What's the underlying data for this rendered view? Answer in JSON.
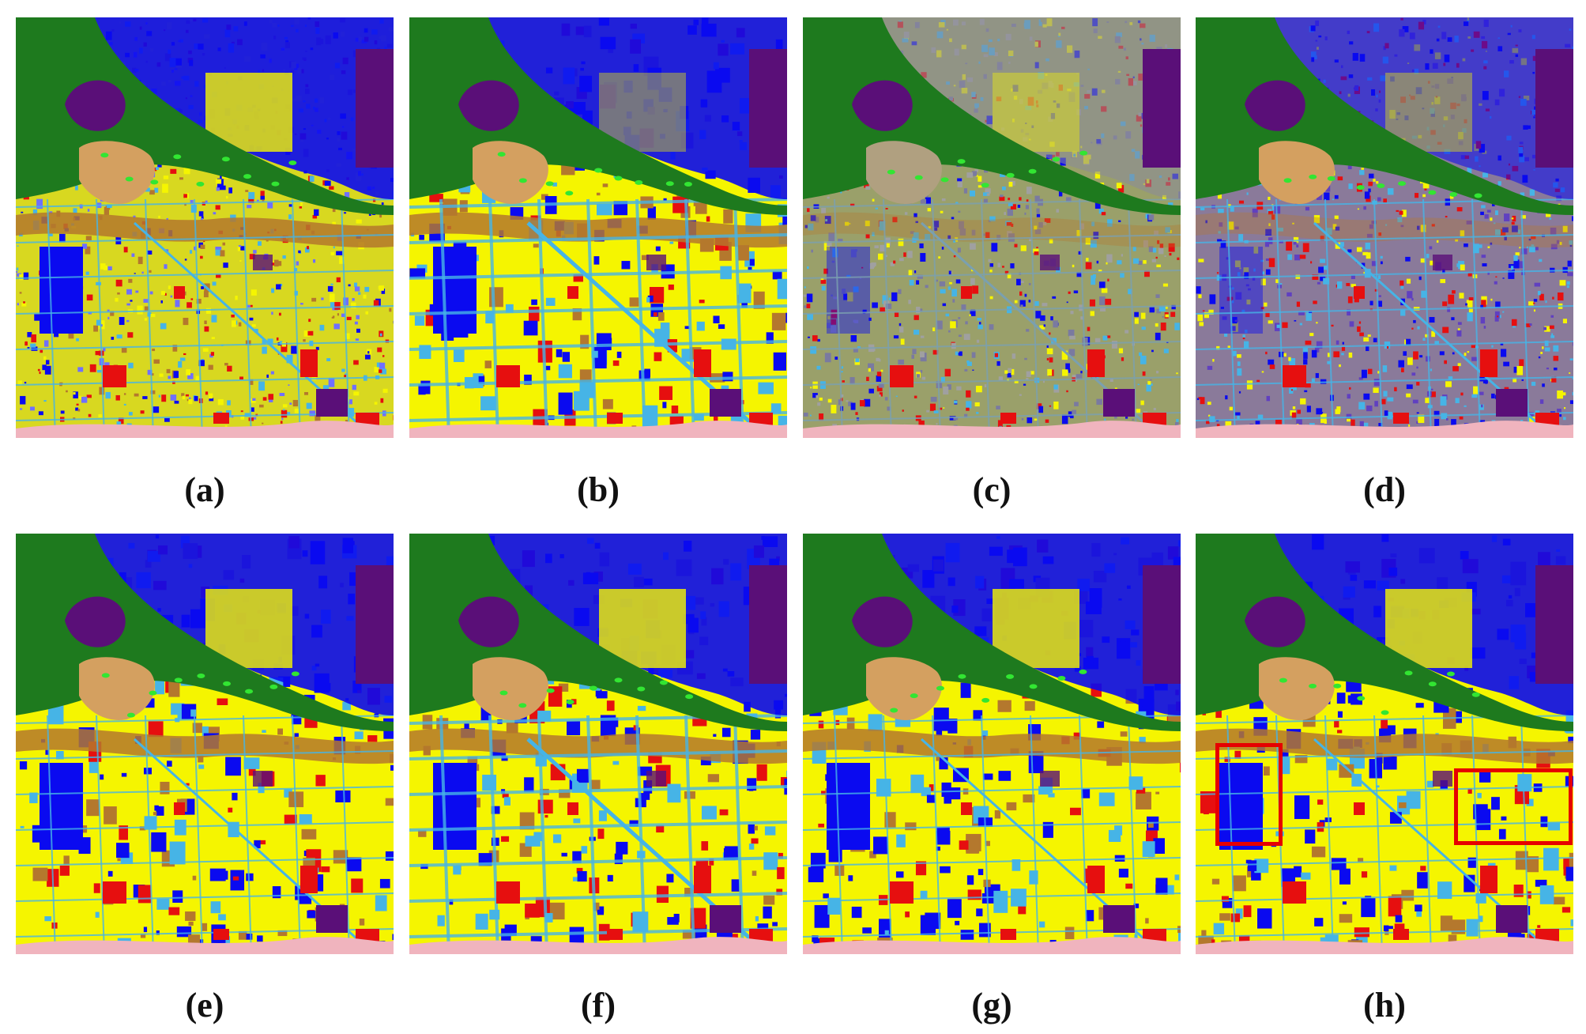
{
  "panels": [
    {
      "label": "(a)",
      "style": "noisy"
    },
    {
      "label": "(b)",
      "style": "smooth"
    },
    {
      "label": "(c)",
      "style": "grey"
    },
    {
      "label": "(d)",
      "style": "purple"
    },
    {
      "label": "(e)",
      "style": "clean"
    },
    {
      "label": "(f)",
      "style": "clean-roads"
    },
    {
      "label": "(g)",
      "style": "clean"
    },
    {
      "label": "(h)",
      "style": "clean-boxes"
    }
  ],
  "class_colors": {
    "water": "#1e7a1e",
    "dark_vegetation": "#5a0f78",
    "built_up_blue": "#0a0af0",
    "residential_yellow": "#f5f500",
    "bare_brown": "#b4782d",
    "sand_tan": "#d4a060",
    "industrial_red": "#e60f0f",
    "road_cyan": "#46b4e6",
    "pink": "#f0b4be",
    "bright_green": "#32e632",
    "highlight_box": "#e60000"
  }
}
